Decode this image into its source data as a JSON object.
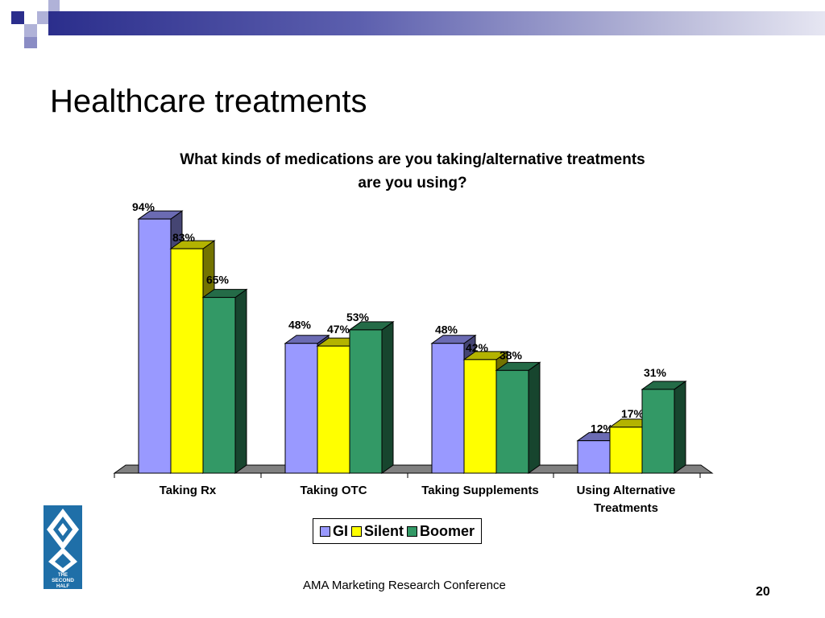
{
  "slide": {
    "title": "Healthcare treatments",
    "footer": "AMA Marketing Research Conference",
    "page_number": "20",
    "logo_text": [
      "THE",
      "SECOND",
      "HALF"
    ]
  },
  "chart_data": {
    "type": "bar",
    "title": "What kinds of medications are you taking/alternative treatments are you using?",
    "title_lines": [
      "What kinds of medications are you taking/alternative treatments",
      "are you using?"
    ],
    "categories": [
      "Taking Rx",
      "Taking OTC",
      "Taking Supplements",
      "Using Alternative Treatments"
    ],
    "category_lines": [
      [
        "Taking Rx"
      ],
      [
        "Taking OTC"
      ],
      [
        "Taking Supplements"
      ],
      [
        "Using Alternative",
        "Treatments"
      ]
    ],
    "series": [
      {
        "name": "GI",
        "values": [
          94,
          48,
          48,
          12
        ],
        "color": "#9999ff"
      },
      {
        "name": "Silent",
        "values": [
          83,
          47,
          42,
          17
        ],
        "color": "#ffff00"
      },
      {
        "name": "Boomer",
        "values": [
          65,
          53,
          38,
          31
        ],
        "color": "#339966"
      }
    ],
    "value_suffix": "%",
    "ylim": [
      0,
      100
    ],
    "grid": false,
    "legend_position": "bottom",
    "style": "3d-clustered-column"
  }
}
